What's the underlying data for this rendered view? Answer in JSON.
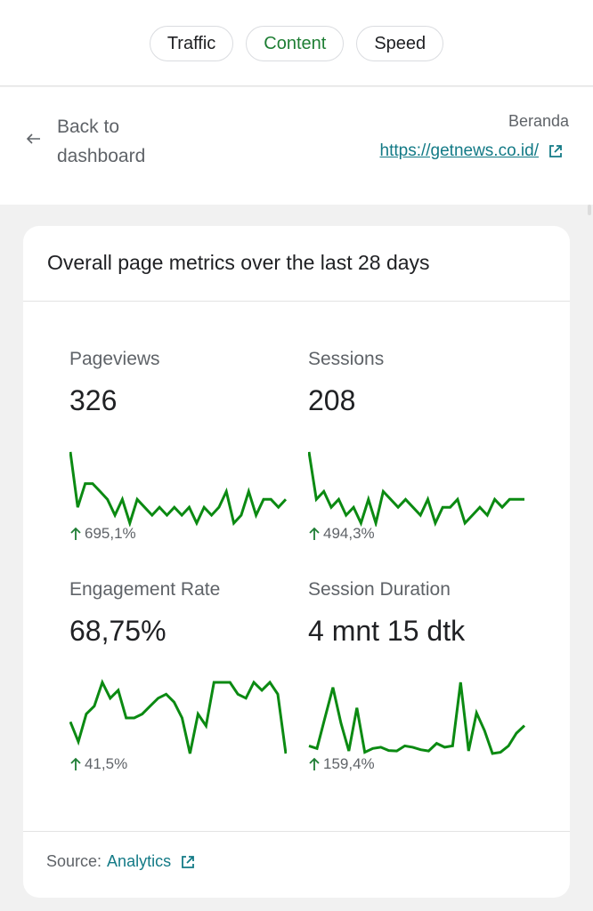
{
  "tabs": [
    {
      "label": "Traffic",
      "active": false
    },
    {
      "label": "Content",
      "active": true
    },
    {
      "label": "Speed",
      "active": false
    }
  ],
  "header": {
    "back_label": "Back to dashboard",
    "page_name": "Beranda",
    "page_url": "https://getnews.co.id/"
  },
  "card": {
    "title": "Overall page metrics over the last 28 days",
    "metrics": [
      {
        "label": "Pageviews",
        "value": "326",
        "change": "695,1%",
        "trend": [
          20,
          13,
          16,
          16,
          15,
          14,
          12,
          14,
          11,
          14,
          13,
          12,
          13,
          12,
          13,
          12,
          13,
          11,
          13,
          12,
          13,
          15,
          11,
          12,
          15,
          12,
          14,
          14,
          13,
          14
        ]
      },
      {
        "label": "Sessions",
        "value": "208",
        "change": "494,3%",
        "trend": [
          20,
          14,
          15,
          13,
          14,
          12,
          13,
          11,
          14,
          11,
          15,
          14,
          13,
          14,
          13,
          12,
          14,
          11,
          13,
          13,
          14,
          11,
          12,
          13,
          12,
          14,
          13,
          14,
          14,
          14
        ]
      },
      {
        "label": "Engagement Rate",
        "value": "68,75%",
        "change": "41,5%",
        "trend": [
          60,
          55,
          62,
          64,
          70,
          66,
          68,
          61,
          61,
          62,
          64,
          66,
          67,
          65,
          61,
          52,
          62,
          59,
          70,
          70,
          70,
          67,
          66,
          70,
          68,
          70,
          67,
          52
        ]
      },
      {
        "label": "Session Duration",
        "value": "4 mnt 15 dtk",
        "change": "159,4%",
        "trend": [
          30,
          20,
          140,
          260,
          120,
          10,
          180,
          5,
          20,
          25,
          12,
          10,
          30,
          25,
          15,
          10,
          40,
          25,
          30,
          280,
          10,
          160,
          90,
          0,
          5,
          30,
          80,
          110
        ]
      }
    ]
  },
  "footer": {
    "source_label": "Source:",
    "source_link": "Analytics"
  },
  "colors": {
    "accent_green": "#1e7e34",
    "sparkline": "#0b8a12",
    "link": "#137a86"
  }
}
